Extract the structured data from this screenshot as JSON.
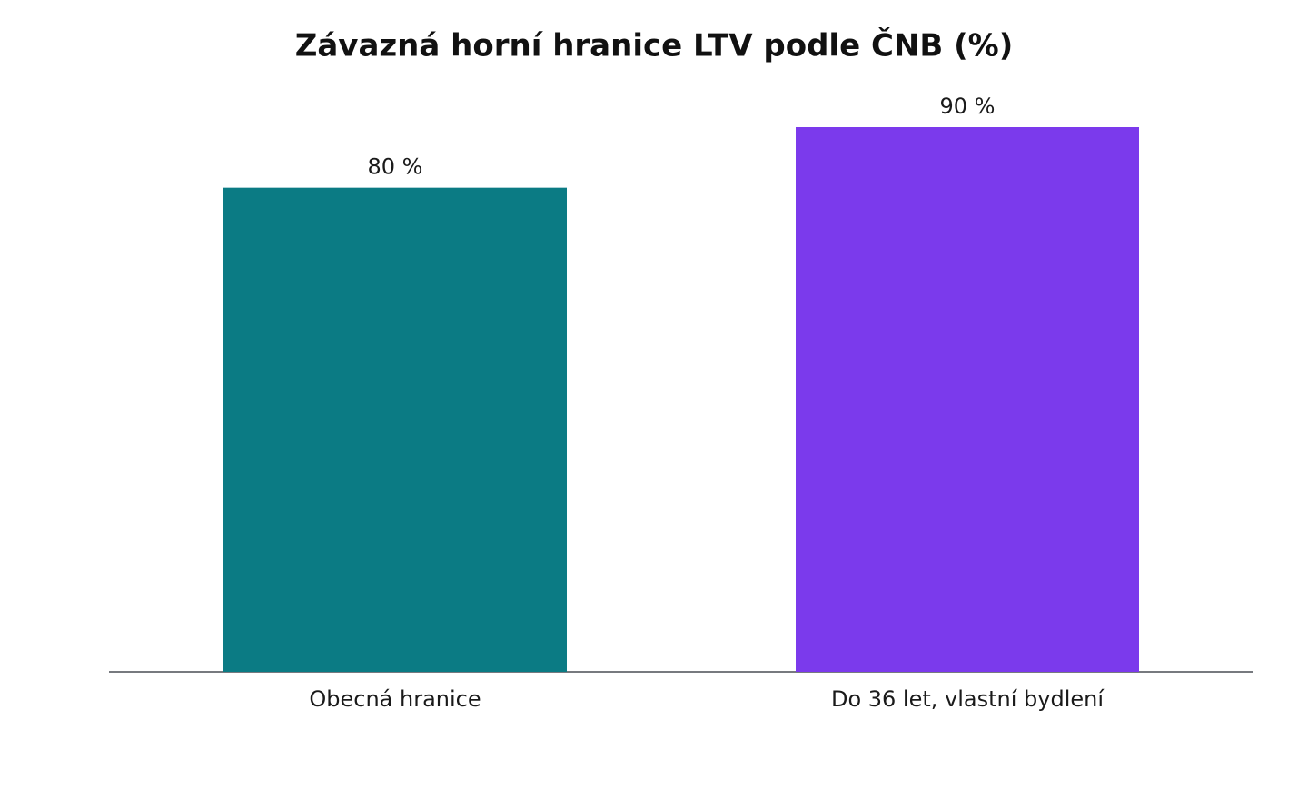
{
  "chart_data": {
    "type": "bar",
    "title": "Závazná horní hranice LTV podle ČNB (%)",
    "categories": [
      "Obecná hranice",
      "Do 36 let, vlastní bydlení"
    ],
    "values": [
      80,
      90
    ],
    "value_labels": [
      "80 %",
      "90 %"
    ],
    "colors": [
      "#0b7b84",
      "#7b3aec"
    ]
  }
}
